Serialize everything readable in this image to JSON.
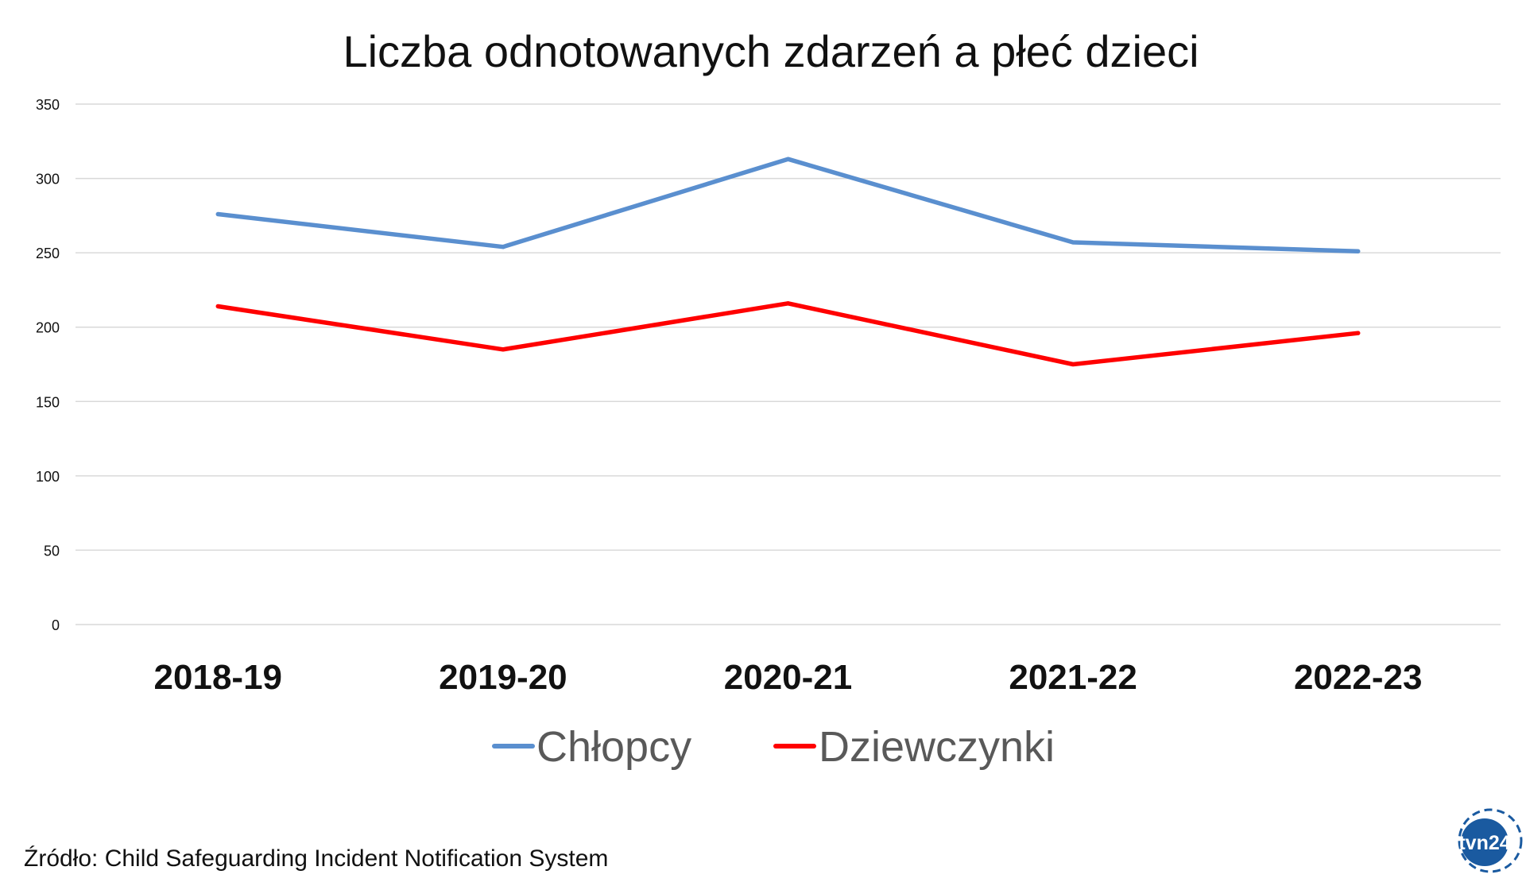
{
  "chart_data": {
    "type": "line",
    "title": "Liczba odnotowanych zdarzeń a płeć dzieci",
    "xlabel": "",
    "ylabel": "",
    "categories": [
      "2018-19",
      "2019-20",
      "2020-21",
      "2021-22",
      "2022-23"
    ],
    "ylim": [
      0,
      350
    ],
    "yticks": [
      0,
      50,
      100,
      150,
      200,
      250,
      300,
      350
    ],
    "grid": true,
    "legend_position": "bottom",
    "series": [
      {
        "name": "Chłopcy",
        "color": "#5a8fcf",
        "values": [
          276,
          254,
          313,
          257,
          251
        ]
      },
      {
        "name": "Dziewczynki",
        "color": "#ff0000",
        "values": [
          214,
          185,
          216,
          175,
          196
        ]
      }
    ]
  },
  "source": "Źródło: Child Safeguarding Incident Notification System",
  "logo": {
    "text": "tvn24",
    "colors": {
      "primary": "#1a5aa0"
    }
  }
}
